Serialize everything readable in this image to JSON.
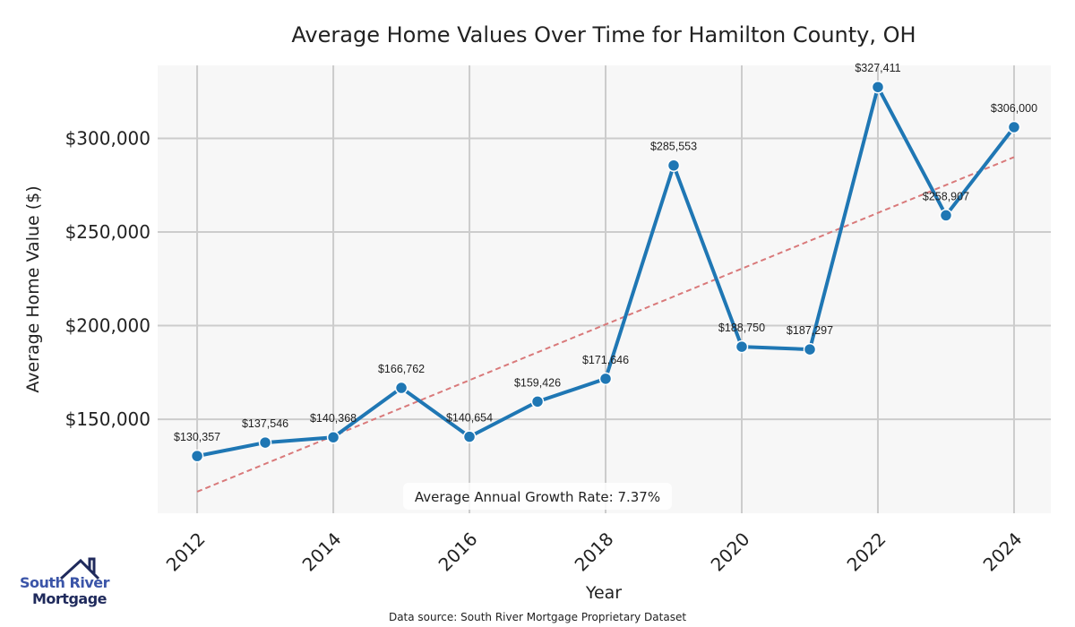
{
  "chart_data": {
    "type": "line",
    "title": "Average Home Values Over Time for Hamilton County, OH",
    "xlabel": "Year",
    "ylabel": "Average Home Value ($)",
    "x": [
      2012,
      2013,
      2014,
      2015,
      2016,
      2017,
      2018,
      2019,
      2020,
      2021,
      2022,
      2023,
      2024
    ],
    "series": [
      {
        "name": "Average Home Value",
        "values": [
          130357,
          137546,
          140368,
          166762,
          140654,
          159426,
          171646,
          285553,
          188750,
          187297,
          327411,
          258907,
          306000
        ],
        "color": "#1f77b4"
      }
    ],
    "data_labels": [
      "$130,357",
      "$137,546",
      "$140,368",
      "$166,762",
      "$140,654",
      "$159,426",
      "$171,646",
      "$285,553",
      "$188,750",
      "$187,297",
      "$327,411",
      "$258,907",
      "$306,000"
    ],
    "trend": {
      "start_value": 111300,
      "end_value": 290000,
      "color": "#d9797a"
    },
    "xticks": [
      "2012",
      "2014",
      "2016",
      "2018",
      "2020",
      "2022",
      "2024"
    ],
    "xtick_values": [
      2012,
      2014,
      2016,
      2018,
      2020,
      2022,
      2024
    ],
    "yticks": [
      "$150,000",
      "$200,000",
      "$250,000",
      "$300,000"
    ],
    "ytick_values": [
      150000,
      200000,
      250000,
      300000
    ],
    "xlim": [
      2011.42,
      2024.54
    ],
    "ylim": [
      99800,
      339000
    ],
    "grid": true,
    "annotation": "Average Annual Growth Rate: 7.37%",
    "source": "Data source: South River Mortgage Proprietary Dataset"
  },
  "logo": {
    "line1": "South River",
    "line2": "Mortgage"
  }
}
